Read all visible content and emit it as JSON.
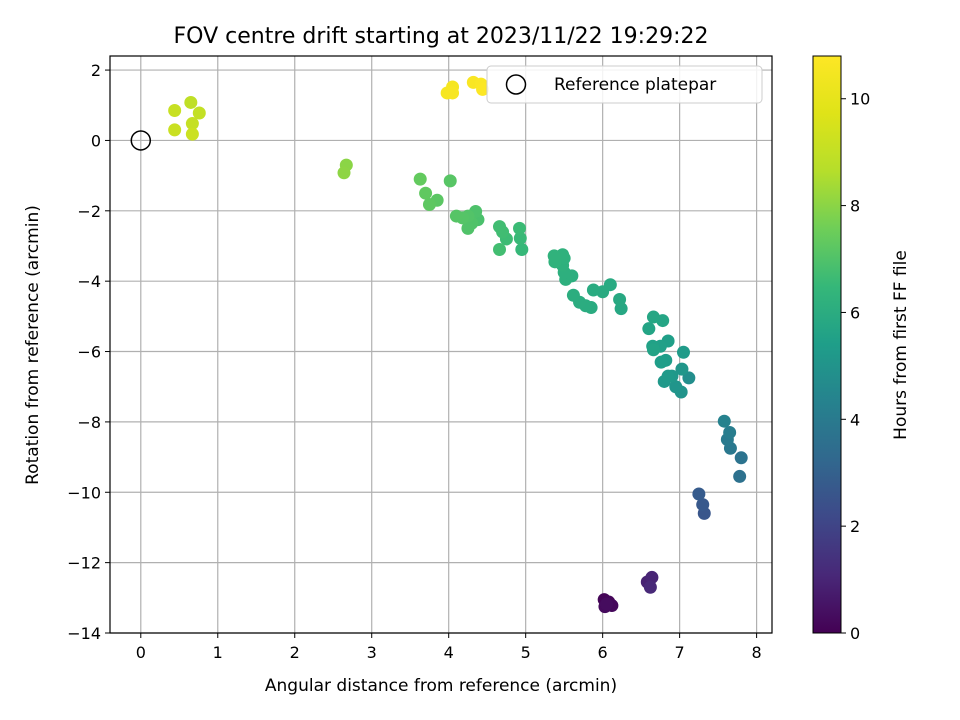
{
  "chart_data": {
    "type": "scatter",
    "title": "FOV centre drift starting at 2023/11/22 19:29:22",
    "xlabel": "Angular distance from reference (arcmin)",
    "ylabel": "Rotation from reference (arcmin)",
    "xlim": [
      -0.4,
      8.2
    ],
    "ylim": [
      -14,
      2.4
    ],
    "xticks": [
      0,
      1,
      2,
      3,
      4,
      5,
      6,
      7,
      8
    ],
    "yticks": [
      -14,
      -12,
      -10,
      -8,
      -6,
      -4,
      -2,
      0,
      2
    ],
    "grid": true,
    "legend": {
      "location": "upper right",
      "entries": [
        "Reference platepar"
      ]
    },
    "reference_point": {
      "name": "Reference platepar",
      "x": 0,
      "y": 0
    },
    "colorbar": {
      "label": "Hours from first FF file",
      "range": [
        0,
        10.8
      ],
      "ticks": [
        0,
        2,
        4,
        6,
        8,
        10
      ],
      "colormap": "viridis"
    },
    "points": [
      {
        "x": 6.02,
        "y": -13.05,
        "t": 0.1
      },
      {
        "x": 6.08,
        "y": -13.12,
        "t": 0.15
      },
      {
        "x": 6.12,
        "y": -13.22,
        "t": 0.2
      },
      {
        "x": 6.03,
        "y": -13.25,
        "t": 0.25
      },
      {
        "x": 6.05,
        "y": -13.18,
        "t": 0.3
      },
      {
        "x": 6.58,
        "y": -12.55,
        "t": 0.9
      },
      {
        "x": 6.64,
        "y": -12.42,
        "t": 1.0
      },
      {
        "x": 6.62,
        "y": -12.7,
        "t": 1.1
      },
      {
        "x": 7.32,
        "y": -10.6,
        "t": 2.6
      },
      {
        "x": 7.3,
        "y": -10.35,
        "t": 2.7
      },
      {
        "x": 7.25,
        "y": -10.05,
        "t": 2.8
      },
      {
        "x": 7.78,
        "y": -9.55,
        "t": 3.6
      },
      {
        "x": 7.8,
        "y": -9.02,
        "t": 3.7
      },
      {
        "x": 7.66,
        "y": -8.75,
        "t": 3.9
      },
      {
        "x": 7.62,
        "y": -8.5,
        "t": 4.0
      },
      {
        "x": 7.65,
        "y": -8.3,
        "t": 4.1
      },
      {
        "x": 7.58,
        "y": -7.98,
        "t": 4.3
      },
      {
        "x": 7.12,
        "y": -6.75,
        "t": 4.8
      },
      {
        "x": 7.02,
        "y": -7.15,
        "t": 5.0
      },
      {
        "x": 6.95,
        "y": -7.0,
        "t": 5.05
      },
      {
        "x": 7.03,
        "y": -6.5,
        "t": 5.1
      },
      {
        "x": 6.9,
        "y": -6.7,
        "t": 5.15
      },
      {
        "x": 6.8,
        "y": -6.85,
        "t": 5.2
      },
      {
        "x": 6.85,
        "y": -6.7,
        "t": 5.25
      },
      {
        "x": 7.05,
        "y": -6.02,
        "t": 5.3
      },
      {
        "x": 6.82,
        "y": -6.25,
        "t": 5.35
      },
      {
        "x": 6.76,
        "y": -6.3,
        "t": 5.4
      },
      {
        "x": 6.85,
        "y": -5.7,
        "t": 5.45
      },
      {
        "x": 6.75,
        "y": -5.85,
        "t": 5.5
      },
      {
        "x": 6.65,
        "y": -5.85,
        "t": 5.55
      },
      {
        "x": 6.66,
        "y": -5.95,
        "t": 5.6
      },
      {
        "x": 6.6,
        "y": -5.35,
        "t": 5.65
      },
      {
        "x": 6.78,
        "y": -5.12,
        "t": 5.7
      },
      {
        "x": 6.66,
        "y": -5.02,
        "t": 5.75
      },
      {
        "x": 6.24,
        "y": -4.78,
        "t": 5.8
      },
      {
        "x": 6.22,
        "y": -4.52,
        "t": 5.85
      },
      {
        "x": 6.1,
        "y": -4.1,
        "t": 5.9
      },
      {
        "x": 6.0,
        "y": -4.3,
        "t": 5.92
      },
      {
        "x": 5.88,
        "y": -4.25,
        "t": 5.95
      },
      {
        "x": 5.85,
        "y": -4.75,
        "t": 5.98
      },
      {
        "x": 5.78,
        "y": -4.7,
        "t": 6.0
      },
      {
        "x": 5.7,
        "y": -4.6,
        "t": 6.02
      },
      {
        "x": 5.62,
        "y": -4.4,
        "t": 6.05
      },
      {
        "x": 5.6,
        "y": -3.85,
        "t": 6.1
      },
      {
        "x": 5.52,
        "y": -3.95,
        "t": 6.12
      },
      {
        "x": 5.5,
        "y": -3.75,
        "t": 6.15
      },
      {
        "x": 5.48,
        "y": -3.55,
        "t": 6.18
      },
      {
        "x": 5.5,
        "y": -3.35,
        "t": 6.2
      },
      {
        "x": 5.48,
        "y": -3.25,
        "t": 6.22
      },
      {
        "x": 5.38,
        "y": -3.45,
        "t": 6.25
      },
      {
        "x": 5.37,
        "y": -3.28,
        "t": 6.28
      },
      {
        "x": 4.95,
        "y": -3.1,
        "t": 6.5
      },
      {
        "x": 4.93,
        "y": -2.78,
        "t": 6.55
      },
      {
        "x": 4.92,
        "y": -2.5,
        "t": 6.6
      },
      {
        "x": 4.75,
        "y": -2.8,
        "t": 6.65
      },
      {
        "x": 4.7,
        "y": -2.6,
        "t": 6.7
      },
      {
        "x": 4.66,
        "y": -2.45,
        "t": 6.72
      },
      {
        "x": 4.66,
        "y": -3.1,
        "t": 6.75
      },
      {
        "x": 4.38,
        "y": -2.25,
        "t": 6.9
      },
      {
        "x": 4.35,
        "y": -2.02,
        "t": 6.95
      },
      {
        "x": 4.3,
        "y": -2.35,
        "t": 7.0
      },
      {
        "x": 4.25,
        "y": -2.5,
        "t": 7.02
      },
      {
        "x": 4.25,
        "y": -2.15,
        "t": 7.05
      },
      {
        "x": 4.18,
        "y": -2.2,
        "t": 7.08
      },
      {
        "x": 4.1,
        "y": -2.15,
        "t": 7.1
      },
      {
        "x": 4.02,
        "y": -1.15,
        "t": 7.15
      },
      {
        "x": 3.85,
        "y": -1.7,
        "t": 7.2
      },
      {
        "x": 3.75,
        "y": -1.82,
        "t": 7.25
      },
      {
        "x": 3.7,
        "y": -1.5,
        "t": 7.3
      },
      {
        "x": 3.63,
        "y": -1.1,
        "t": 7.35
      },
      {
        "x": 2.67,
        "y": -0.7,
        "t": 8.0
      },
      {
        "x": 2.64,
        "y": -0.92,
        "t": 8.05
      },
      {
        "x": 0.65,
        "y": 1.08,
        "t": 8.9
      },
      {
        "x": 0.76,
        "y": 0.78,
        "t": 9.0
      },
      {
        "x": 0.67,
        "y": 0.48,
        "t": 9.05
      },
      {
        "x": 0.44,
        "y": 0.85,
        "t": 9.1
      },
      {
        "x": 0.44,
        "y": 0.3,
        "t": 9.15
      },
      {
        "x": 0.67,
        "y": 0.18,
        "t": 9.2
      },
      {
        "x": 4.05,
        "y": 1.52,
        "t": 10.5
      },
      {
        "x": 3.98,
        "y": 1.35,
        "t": 10.55
      },
      {
        "x": 4.05,
        "y": 1.35,
        "t": 10.6
      },
      {
        "x": 4.32,
        "y": 1.65,
        "t": 10.65
      },
      {
        "x": 4.42,
        "y": 1.6,
        "t": 10.7
      },
      {
        "x": 4.44,
        "y": 1.45,
        "t": 10.75
      }
    ]
  }
}
